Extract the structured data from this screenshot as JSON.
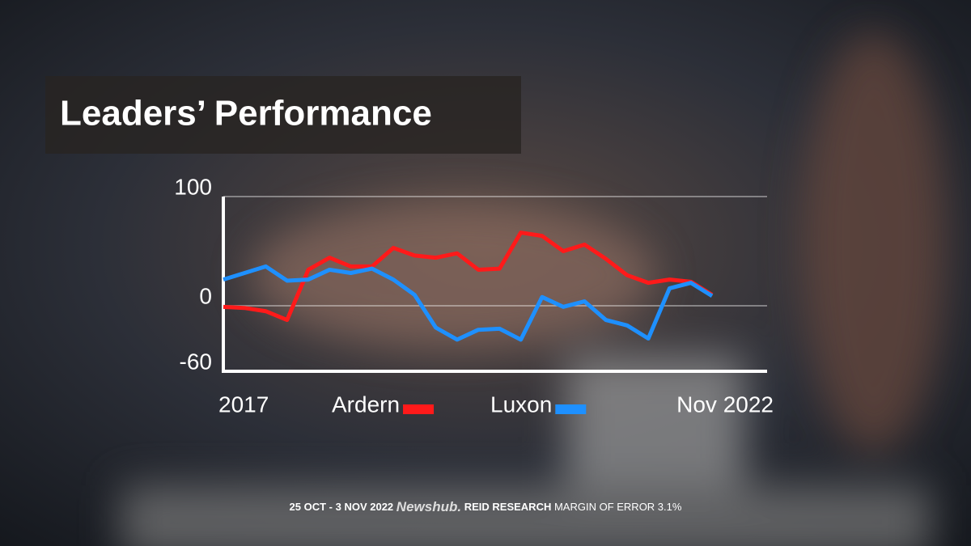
{
  "chart_data": {
    "type": "line",
    "title": "Leaders’ Performance",
    "categories": [
      "2017",
      null,
      null,
      null,
      null,
      null,
      null,
      null,
      null,
      null,
      null,
      null,
      null,
      null,
      null,
      null,
      null,
      null,
      null,
      null,
      null,
      null,
      null,
      "Nov 2022"
    ],
    "series": [
      {
        "name": "Ardern",
        "color": "#ff1a1a",
        "values": [
          -1,
          -2,
          -5,
          -13,
          33,
          44,
          36,
          36,
          53,
          46,
          44,
          48,
          33,
          34,
          67,
          64,
          50,
          56,
          43,
          28,
          21,
          24,
          22,
          10
        ]
      },
      {
        "name": "Luxon",
        "color": "#1e90ff",
        "values": [
          24,
          30,
          36,
          23,
          24,
          33,
          30,
          34,
          24,
          10,
          -20,
          -31,
          -22,
          -21,
          -31,
          8,
          -1,
          4,
          -13,
          -18,
          -30,
          16,
          21,
          9
        ]
      }
    ],
    "ylim": [
      -60,
      100
    ],
    "yticks": [
      100,
      0,
      -60
    ],
    "grid": true
  },
  "footer": {
    "dates": "25 OCT - 3 NOV 2022",
    "brand": "Newshub.",
    "pollster": "REID RESEARCH",
    "margin": "MARGIN OF ERROR 3.1%"
  }
}
